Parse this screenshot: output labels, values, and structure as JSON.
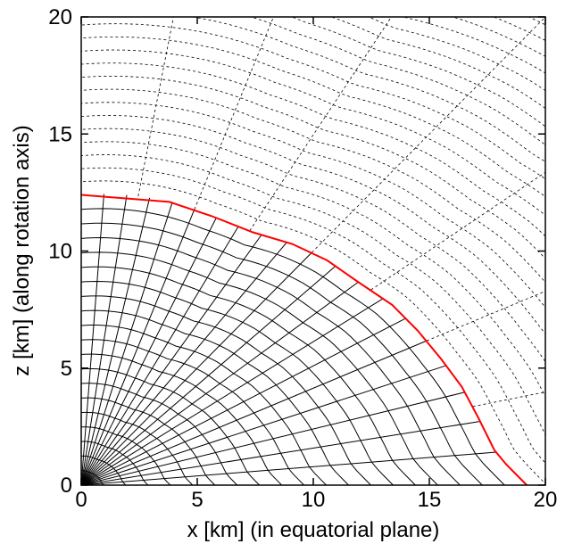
{
  "chart_data": {
    "type": "line",
    "title": "",
    "xlabel": "x [km] (in equatorial plane)",
    "ylabel": "z [km] (along rotation axis)",
    "xlim": [
      0,
      20
    ],
    "ylim": [
      0,
      20
    ],
    "xticks": [
      "0",
      "5",
      "10",
      "15",
      "20"
    ],
    "yticks": [
      "0",
      "5",
      "10",
      "15",
      "20"
    ],
    "grid": false,
    "legend": "none",
    "boundary_color": "#ff0000",
    "grid_color": "#000000",
    "series": [
      {
        "x": [
          0,
          3.8,
          5.6,
          7.4,
          9.1,
          10.6,
          11.9,
          13.4,
          14.5,
          15.5,
          16.4,
          17.1,
          17.8,
          18.3,
          18.8,
          19.1,
          19.2
        ],
        "y": [
          12.4,
          12.1,
          11.5,
          10.8,
          10.3,
          9.6,
          8.7,
          7.7,
          6.6,
          5.4,
          4.2,
          2.9,
          1.5,
          0.9,
          0.4,
          0.1,
          0
        ]
      }
    ],
    "interior_grid": {
      "angular_rays": 20,
      "radial_shells": 19
    },
    "exterior_grid": {
      "angular_rays": 8,
      "radial_shells": 40,
      "style": "dashed"
    }
  }
}
